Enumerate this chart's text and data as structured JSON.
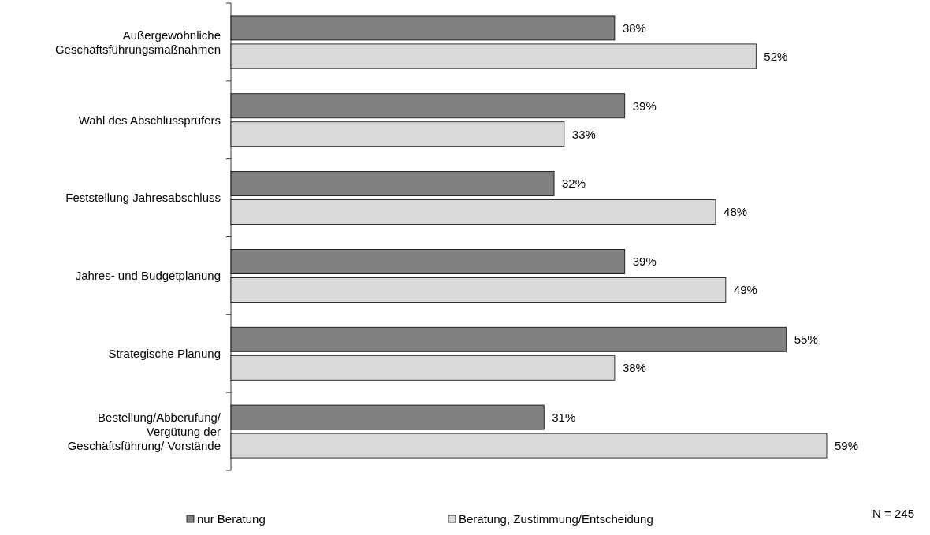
{
  "chart_data": {
    "type": "bar",
    "orientation": "horizontal",
    "categories": [
      "Außergewöhnliche\nGeschäftsführungsmaßnahmen",
      "Wahl des Abschlussprüfers",
      "Feststellung Jahresabschluss",
      "Jahres- und Budgetplanung",
      "Strategische Planung",
      "Bestellung/Abberufung/\nVergütung der\nGeschäftsführung/ Vorstände"
    ],
    "series": [
      {
        "name": "nur Beratung",
        "color": "#808080",
        "values": [
          38,
          39,
          32,
          39,
          55,
          31
        ],
        "value_labels": [
          "38%",
          "39%",
          "32%",
          "39%",
          "55%",
          "31%"
        ]
      },
      {
        "name": "Beratung, Zustimmung/Entscheidung",
        "color": "#d9d9d9",
        "values": [
          52,
          33,
          48,
          49,
          38,
          59
        ],
        "value_labels": [
          "52%",
          "33%",
          "48%",
          "49%",
          "38%",
          "59%"
        ]
      }
    ],
    "legend": "bottom",
    "annotations": [
      "N = 245"
    ]
  }
}
